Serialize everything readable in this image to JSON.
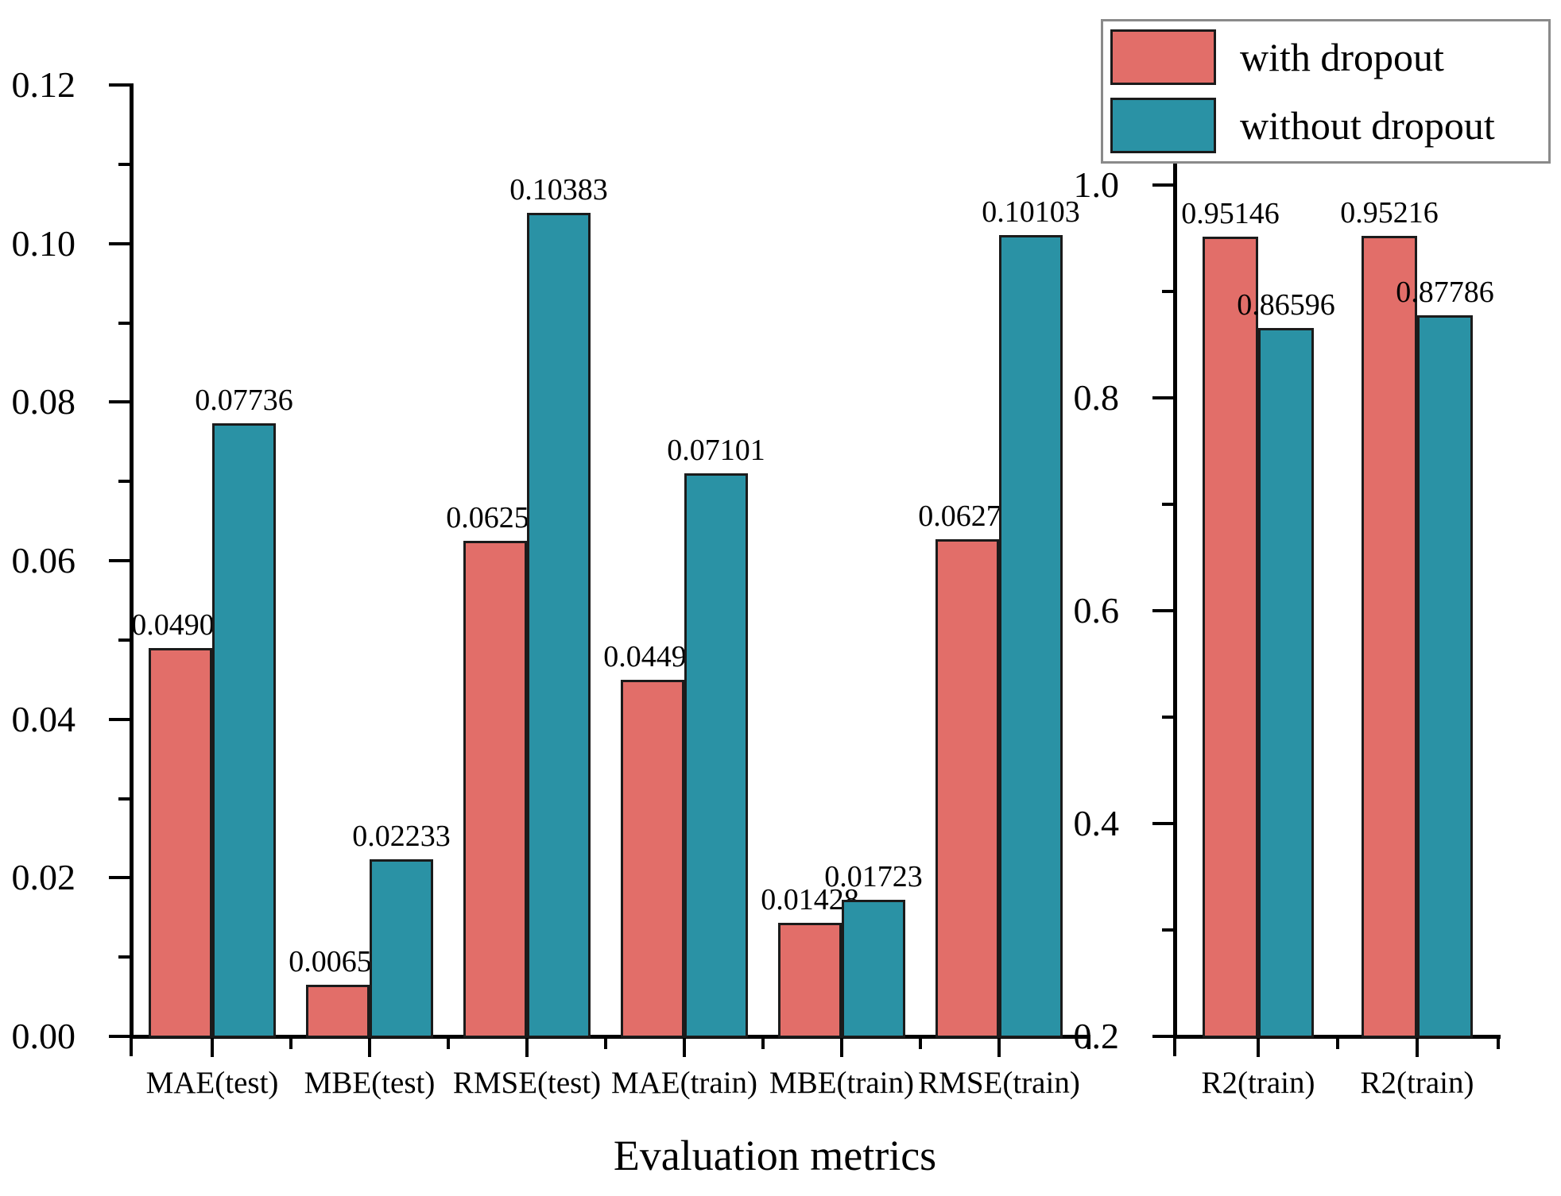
{
  "figure": {
    "title": "Evaluation metrics",
    "legend": {
      "position": "top-right",
      "items": [
        {
          "label": "with dropout",
          "color": "#E26E69"
        },
        {
          "label": "without dropout",
          "color": "#2A92A5"
        }
      ]
    }
  },
  "chart_data": {
    "type": "bar",
    "title": "Evaluation metrics",
    "xlabel": "Evaluation metrics",
    "ylabel": "",
    "grid": false,
    "legend_position": "top-right",
    "bar_edge_color": "#1b1b1b",
    "series_colors": {
      "with dropout": "#E26E69",
      "without dropout": "#2A92A5"
    },
    "panels": [
      {
        "name": "error-metrics-panel",
        "ylim": [
          0.0,
          0.12
        ],
        "yticks": [
          "0.00",
          "0.02",
          "0.04",
          "0.06",
          "0.08",
          "0.10",
          "0.12"
        ],
        "categories": [
          "MAE(test)",
          "MBE(test)",
          "RMSE(test)",
          "MAE(train)",
          "MBE(train)",
          "RMSE(train)"
        ],
        "series": [
          {
            "name": "with dropout",
            "values": [
              0.04903,
              0.00652,
              0.06252,
              0.04495,
              0.01428,
              0.06273
            ],
            "labels": [
              "0.04903",
              "0.00652",
              "0.06252",
              "0.04495",
              "0.01428",
              "0.06273"
            ]
          },
          {
            "name": "without dropout",
            "values": [
              0.07736,
              0.02233,
              0.10383,
              0.07101,
              0.01723,
              0.10103
            ],
            "labels": [
              "0.07736",
              "0.02233",
              "0.10383",
              "0.07101",
              "0.01723",
              "0.10103"
            ]
          }
        ]
      },
      {
        "name": "r2-panel",
        "ylim": [
          0.2,
          1.0
        ],
        "yticks": [
          "0.2",
          "0.4",
          "0.6",
          "0.8",
          "1.0"
        ],
        "categories": [
          "R2(train)",
          "R2(train)"
        ],
        "series": [
          {
            "name": "with dropout",
            "values": [
              0.95146,
              0.95216
            ],
            "labels": [
              "0.95146",
              "0.95216"
            ]
          },
          {
            "name": "without dropout",
            "values": [
              0.86596,
              0.87786
            ],
            "labels": [
              "0.86596",
              "0.87786"
            ]
          }
        ]
      }
    ]
  }
}
